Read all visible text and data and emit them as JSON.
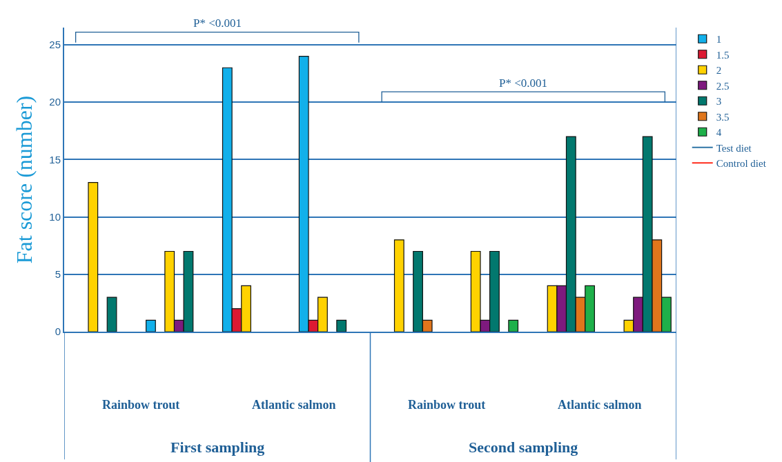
{
  "chart_data": {
    "type": "bar",
    "ylabel": "Fat score (number)",
    "categories": [
      null,
      null,
      null,
      null,
      null,
      null,
      null,
      null
    ],
    "series": [
      {
        "name": "1",
        "color": "#12b0ea",
        "values": [
          null,
          1,
          23,
          24,
          null,
          null,
          null,
          null
        ]
      },
      {
        "name": "1.5",
        "color": "#dc1a32",
        "values": [
          null,
          null,
          2,
          1,
          null,
          null,
          null,
          null
        ]
      },
      {
        "name": "2",
        "color": "#ffd200",
        "values": [
          13,
          7,
          4,
          3,
          8,
          7,
          4,
          1
        ]
      },
      {
        "name": "2.5",
        "color": "#7e1a7e",
        "values": [
          null,
          1,
          null,
          null,
          null,
          1,
          4,
          3
        ]
      },
      {
        "name": "3",
        "color": "#02786e",
        "values": [
          3,
          7,
          null,
          1,
          7,
          7,
          17,
          17
        ]
      },
      {
        "name": "3.5",
        "color": "#e0761c",
        "values": [
          null,
          null,
          null,
          null,
          1,
          null,
          3,
          8
        ]
      },
      {
        "name": "4",
        "color": "#1eb04a",
        "values": [
          null,
          null,
          null,
          null,
          null,
          1,
          4,
          3
        ]
      },
      {
        "name": "Test diet",
        "type": "line",
        "color": "#2e75a6",
        "values": [
          null,
          null,
          null,
          null,
          null,
          null,
          null,
          null
        ]
      },
      {
        "name": "Control diet",
        "type": "line",
        "color": "#ff2a1a",
        "values": [
          null,
          null,
          null,
          null,
          null,
          null,
          null,
          null
        ]
      }
    ],
    "ylim": [
      0,
      26.5
    ],
    "yticks": [
      0,
      5,
      10,
      15,
      20,
      25
    ],
    "grid": "y",
    "legend": "top right",
    "annotations": [
      "P* <0.001",
      "P* <0.001",
      "Rainbow trout",
      "Atlantic salmon",
      "Rainbow trout",
      "Atlantic salmon",
      "First sampling",
      "Second sampling"
    ]
  }
}
